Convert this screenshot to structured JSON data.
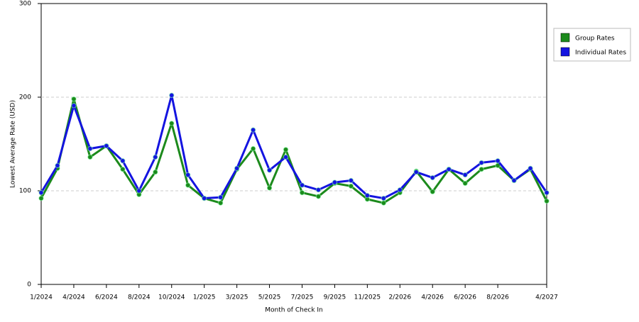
{
  "chart_data": {
    "type": "line",
    "y_label": "Lowest Average Rate (USD)",
    "x_label": "Month of Check In",
    "categories": [
      "1/2024",
      null,
      "4/2024",
      null,
      "6/2024",
      null,
      "8/2024",
      null,
      "10/2024",
      null,
      "1/2025",
      null,
      "3/2025",
      null,
      "5/2025",
      null,
      "7/2025",
      null,
      "9/2025",
      null,
      "11/2025",
      null,
      "2/2026",
      null,
      "4/2026",
      null,
      "6/2026",
      null,
      "8/2026",
      null,
      null,
      "4/2027"
    ],
    "series": [
      {
        "name": "Group Rates",
        "color": "#1c8a1c",
        "values": [
          92,
          124,
          198,
          136,
          148,
          123,
          96,
          120,
          172,
          106,
          92,
          87,
          123,
          145,
          103,
          144,
          98,
          94,
          108,
          105,
          91,
          87,
          98,
          121,
          99,
          123,
          108,
          123,
          127,
          111,
          123,
          89
        ]
      },
      {
        "name": "Individual Rates",
        "color": "#1414e0",
        "values": [
          98,
          127,
          191,
          145,
          148,
          132,
          100,
          136,
          202,
          117,
          92,
          93,
          124,
          165,
          122,
          136,
          106,
          101,
          109,
          111,
          95,
          92,
          101,
          120,
          114,
          123,
          117,
          130,
          132,
          111,
          124,
          98
        ]
      }
    ],
    "ylim": [
      0,
      300
    ],
    "yticks": [
      0,
      100,
      200,
      300
    ],
    "grid": true,
    "legend": "right"
  }
}
